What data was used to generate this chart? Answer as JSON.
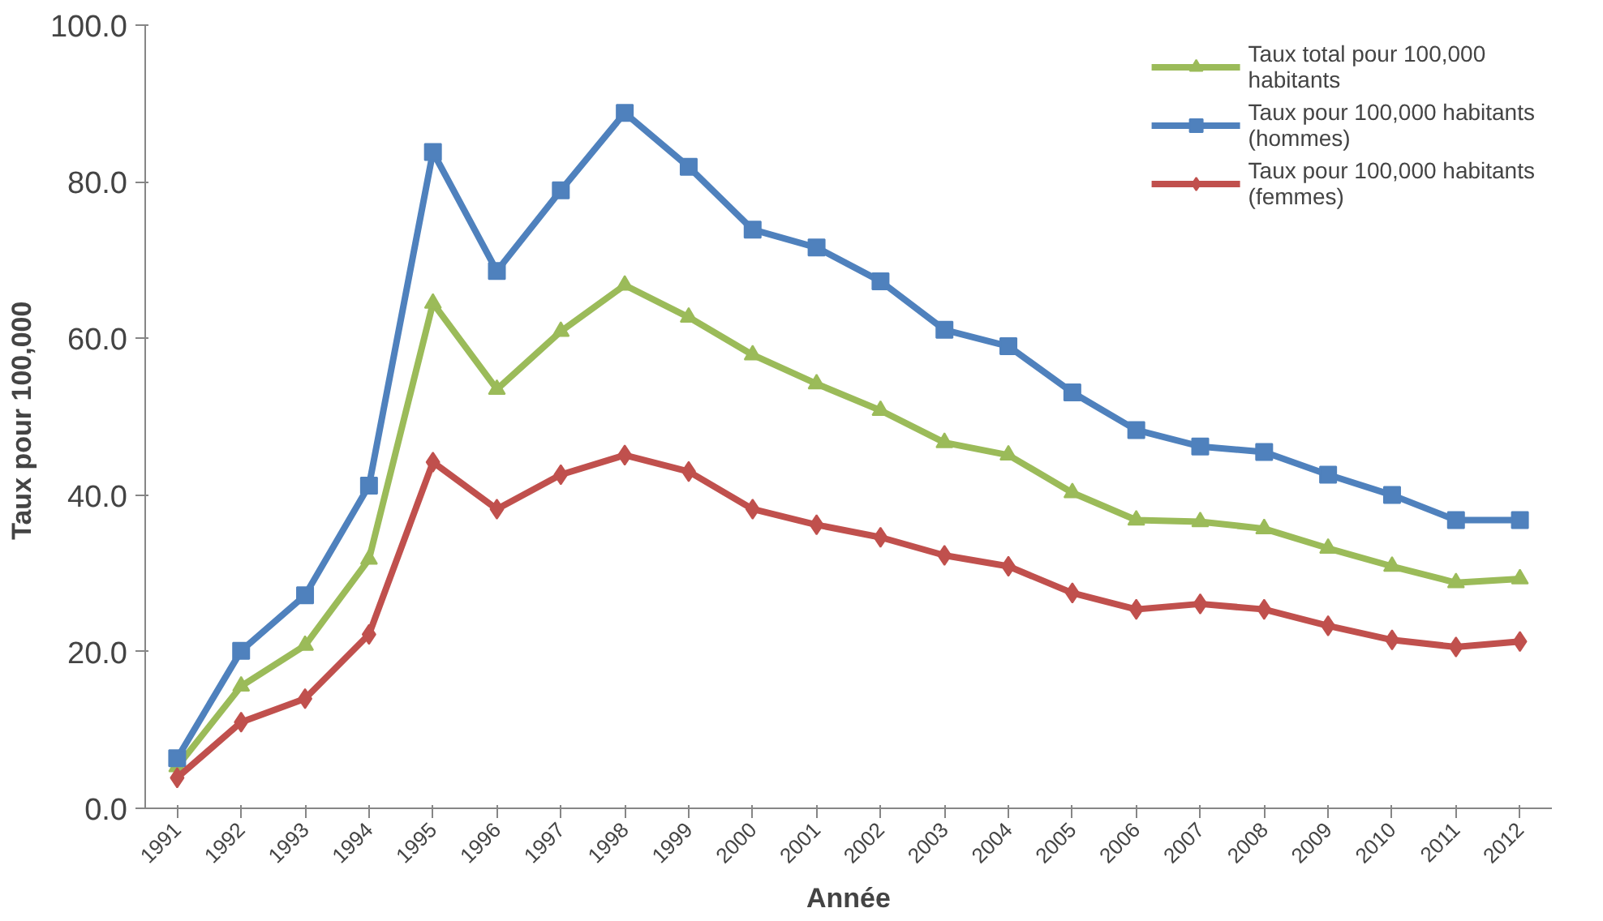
{
  "chart_data": {
    "type": "line",
    "xlabel": "Année",
    "ylabel": "Taux pour  100,000",
    "categories": [
      "1991",
      "1992",
      "1993",
      "1994",
      "1995",
      "1996",
      "1997",
      "1998",
      "1999",
      "2000",
      "2001",
      "2002",
      "2003",
      "2004",
      "2005",
      "2006",
      "2007",
      "2008",
      "2009",
      "2010",
      "2011",
      "2012"
    ],
    "ylim": [
      0,
      100
    ],
    "yticks": [
      {
        "value": 0,
        "label": "0.0"
      },
      {
        "value": 20,
        "label": "20.0"
      },
      {
        "value": 40,
        "label": "40.0"
      },
      {
        "value": 60,
        "label": "60.0"
      },
      {
        "value": 80,
        "label": "80.0"
      },
      {
        "value": 100,
        "label": "100.0"
      }
    ],
    "grid": false,
    "legend": "top right",
    "line_style": "solid",
    "series": [
      {
        "name": "Taux total pour 100,000 habitants",
        "color": "#9bbb59",
        "marker": "triangle",
        "values": [
          5.3,
          15.6,
          20.8,
          31.8,
          64.5,
          53.5,
          60.9,
          66.8,
          62.7,
          57.9,
          54.2,
          50.8,
          46.7,
          45.1,
          40.3,
          36.8,
          36.6,
          35.7,
          33.2,
          30.9,
          28.8,
          29.3
        ]
      },
      {
        "name": "Taux pour 100,000 habitants (hommes)",
        "color": "#4f81bd",
        "marker": "square",
        "values": [
          6.4,
          20.1,
          27.2,
          41.2,
          83.8,
          68.6,
          78.9,
          88.8,
          81.9,
          73.9,
          71.6,
          67.3,
          61.1,
          59.0,
          53.1,
          48.3,
          46.2,
          45.5,
          42.6,
          40.0,
          36.8,
          36.8
        ]
      },
      {
        "name": "Taux pour 100,000 habitants (femmes)",
        "color": "#c0504d",
        "marker": "diamond",
        "values": [
          3.9,
          11.0,
          14.0,
          22.2,
          44.2,
          38.2,
          42.6,
          45.1,
          43.0,
          38.2,
          36.2,
          34.6,
          32.3,
          30.9,
          27.5,
          25.4,
          26.1,
          25.4,
          23.3,
          21.5,
          20.6,
          21.3
        ]
      }
    ]
  }
}
